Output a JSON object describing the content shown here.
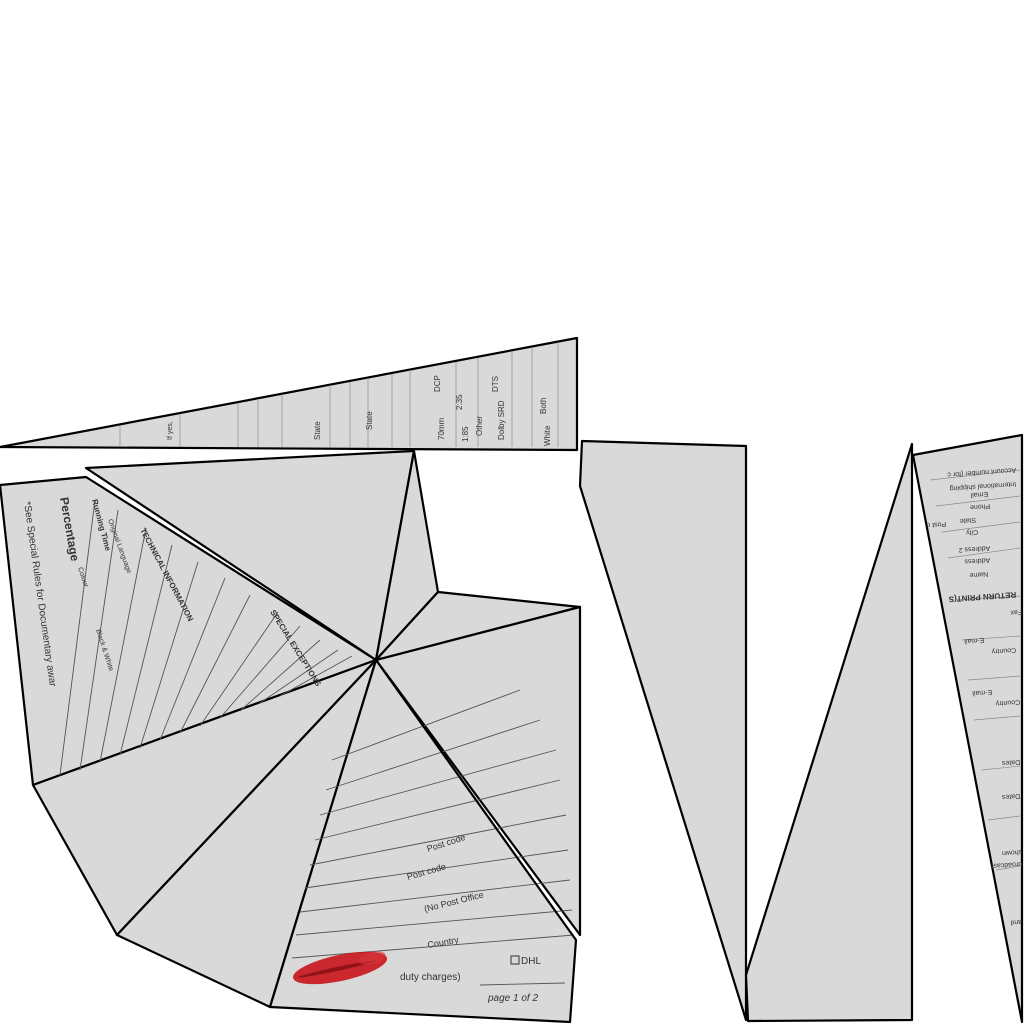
{
  "pieces": {
    "top_strip": {
      "labels": [
        "State",
        "State",
        "DCP",
        "70mm",
        "2:35",
        "1:85",
        "Other",
        "DTS",
        "Dolby SRD",
        "Both",
        "White",
        "If yes,"
      ]
    },
    "left_fan": {
      "footnote": "*See Special Rules for Documentary awar",
      "heading": "Percentage",
      "section_labels": [
        "TECHNICAL INFORMATION",
        "SPECIAL EXCEPTIONS",
        "Colour",
        "Black & White",
        "Running Time",
        "Original Language"
      ]
    },
    "bottom_page": {
      "labels": [
        "Post code",
        "Post code",
        "(No Post Office",
        "Country",
        "DHL",
        "duty charges)"
      ],
      "page_number": "page 1 of 2"
    },
    "right_strip": {
      "heading": "RETURN PRINT(S",
      "labels": [
        "Account number (for c",
        "International shipping",
        "Email",
        "Phone",
        "State",
        "City",
        "Post c",
        "Address 2",
        "Address",
        "Name",
        "Fax",
        "E-mail",
        "Country",
        "E-mail",
        "Country",
        "Dates",
        "Dates",
        "broadcast",
        "shown",
        "and"
      ]
    }
  },
  "colors": {
    "facet_fill": "#d9d9d9",
    "outline": "#000000",
    "lipstick": "#c8141b",
    "background": "#ffffff"
  }
}
